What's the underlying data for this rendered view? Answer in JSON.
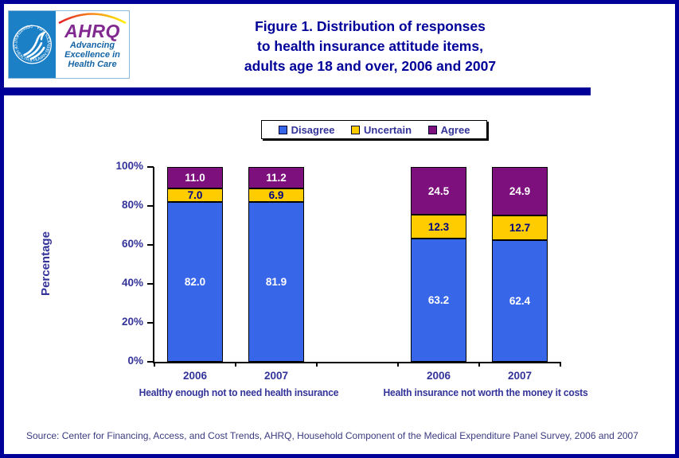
{
  "header": {
    "logo": {
      "hhs_ring_text": "DEPARTMENT OF HEALTH & HUMAN SERVICES • USA",
      "ahrq_acronym": "AHRQ",
      "tagline_line1": "Advancing",
      "tagline_line2": "Excellence in",
      "tagline_line3": "Health Care"
    },
    "title_lines": [
      "Figure 1. Distribution of responses",
      "to health insurance attitude items,",
      "adults age 18 and over, 2006 and 2007"
    ]
  },
  "chart_data": {
    "type": "bar",
    "stacked": true,
    "ylabel": "Percentage",
    "ylim": [
      0,
      100
    ],
    "yticks": [
      "0%",
      "20%",
      "40%",
      "60%",
      "80%",
      "100%"
    ],
    "legend_position": "top",
    "legend": [
      {
        "label": "Disagree",
        "color": "#3866E8"
      },
      {
        "label": "Uncertain",
        "color": "#FFCC00"
      },
      {
        "label": "Agree",
        "color": "#7D107D"
      }
    ],
    "value_label_colors": {
      "disagree": "#FFFFFF",
      "uncertain": "#000080",
      "agree": "#FFFFFF"
    },
    "groups": [
      {
        "caption": "Healthy enough not to need health insurance",
        "bars": [
          {
            "x": "2006",
            "disagree": 82.0,
            "uncertain": 7.0,
            "agree": 11.0
          },
          {
            "x": "2007",
            "disagree": 81.9,
            "uncertain": 6.9,
            "agree": 11.2
          }
        ]
      },
      {
        "caption": "Health insurance not worth the money it costs",
        "bars": [
          {
            "x": "2006",
            "disagree": 63.2,
            "uncertain": 12.3,
            "agree": 24.5
          },
          {
            "x": "2007",
            "disagree": 62.4,
            "uncertain": 12.7,
            "agree": 24.9
          }
        ]
      }
    ]
  },
  "footer": {
    "source": "Source: Center for Financing, Access, and Cost Trends, AHRQ, Household Component of the Medical Expenditure Panel Survey,  2006 and 2007"
  }
}
